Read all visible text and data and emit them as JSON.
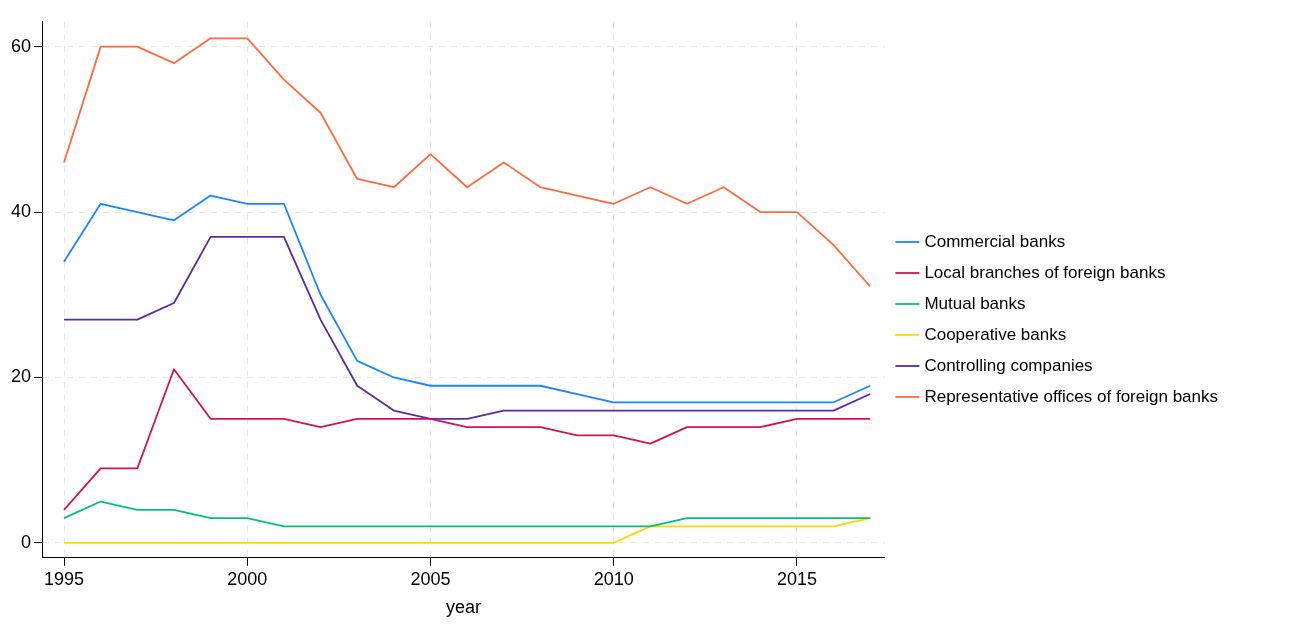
{
  "chart_data": {
    "type": "line",
    "xlabel": "year",
    "x": [
      1995,
      1996,
      1997,
      1998,
      1999,
      2000,
      2001,
      2002,
      2003,
      2004,
      2005,
      2006,
      2007,
      2008,
      2009,
      2010,
      2011,
      2012,
      2013,
      2014,
      2015,
      2016,
      2017
    ],
    "xlim": [
      1994.4,
      2017.4
    ],
    "xticks": [
      1995,
      2000,
      2005,
      2010,
      2015
    ],
    "ylim": [
      -1.8,
      63
    ],
    "yticks": [
      0,
      20,
      40,
      60
    ],
    "grid": true,
    "legend": "right",
    "marker": "none",
    "line_style": "solid",
    "series": [
      {
        "name": "Commercial banks",
        "color": "#1a85ff",
        "values": [
          34,
          41,
          40,
          39,
          42,
          41,
          41,
          30,
          22,
          20,
          19,
          19,
          19,
          19,
          18,
          17,
          17,
          17,
          17,
          17,
          17,
          17,
          19
        ]
      },
      {
        "name": "Local branches of foreign banks",
        "color": "#d41159",
        "values": [
          4,
          9,
          9,
          21,
          15,
          15,
          15,
          14,
          15,
          15,
          15,
          14,
          14,
          14,
          13,
          13,
          12,
          14,
          14,
          14,
          15,
          15,
          15
        ]
      },
      {
        "name": "Mutual banks",
        "color": "#00c17a",
        "values": [
          3,
          5,
          4,
          4,
          3,
          3,
          2,
          2,
          2,
          2,
          2,
          2,
          2,
          2,
          2,
          2,
          2,
          3,
          3,
          3,
          3,
          3,
          3
        ]
      },
      {
        "name": "Cooperative banks",
        "color": "#ffd700",
        "values": [
          0,
          0,
          0,
          0,
          0,
          0,
          0,
          0,
          0,
          0,
          0,
          0,
          0,
          0,
          0,
          0,
          2,
          2,
          2,
          2,
          2,
          2,
          3
        ]
      },
      {
        "name": "Controlling companies",
        "color": "#5a2ca0",
        "values": [
          27,
          27,
          27,
          29,
          37,
          37,
          37,
          27,
          19,
          16,
          15,
          15,
          16,
          16,
          16,
          16,
          16,
          16,
          16,
          16,
          16,
          16,
          18
        ]
      },
      {
        "name": "Representative offices of foreign banks",
        "color": "#ff6a3d",
        "values": [
          46,
          60,
          60,
          58,
          61,
          61,
          56,
          52,
          44,
          43,
          47,
          43,
          46,
          43,
          42,
          41,
          43,
          41,
          43,
          40,
          40,
          36,
          31
        ]
      }
    ]
  }
}
